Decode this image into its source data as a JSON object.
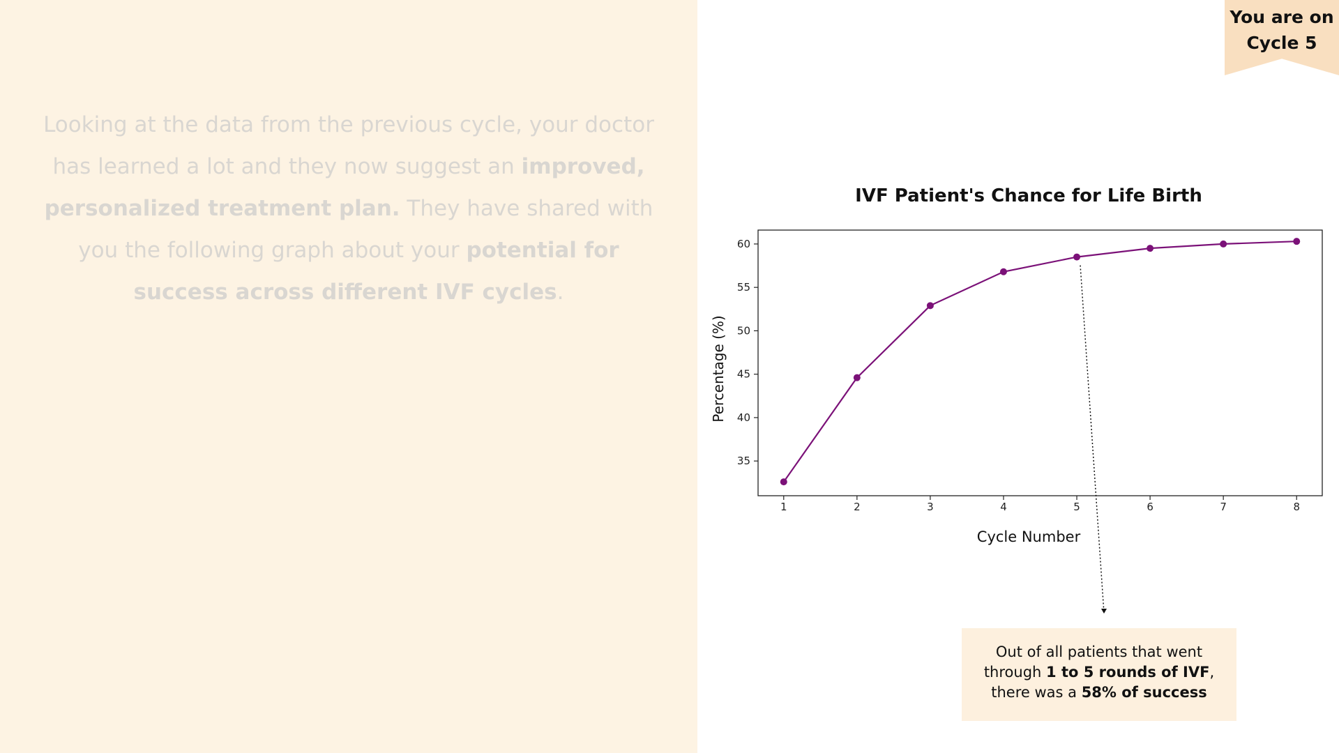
{
  "intro": {
    "t1": "Looking at the data from the previous cycle, your doctor has learned a lot and they now suggest an ",
    "b1": "improved, personalized treatment plan.",
    "t2": " They have shared with you the following graph about your ",
    "b2": "potential for success across different IVF cycles",
    "t3": "."
  },
  "badge": {
    "line1": "You are on",
    "line2": "Cycle 5"
  },
  "callout": {
    "t1": "Out of all patients that went through ",
    "b1": "1 to 5 rounds of IVF",
    "t2": ", there was a ",
    "b2": "58% of success"
  },
  "colors": {
    "line": "#7b1178",
    "left_panel": "#fdf3e3",
    "badge": "#f9dfc0",
    "callout": "#fdf0de"
  },
  "chart_data": {
    "type": "line",
    "title": "IVF Patient's Chance for Life Birth",
    "xlabel": "Cycle Number",
    "ylabel": "Percentage (%)",
    "x": [
      1,
      2,
      3,
      4,
      5,
      6,
      7,
      8
    ],
    "series": [
      {
        "values": [
          32.6,
          44.6,
          52.9,
          56.8,
          58.5,
          59.5,
          60.0,
          60.3
        ]
      }
    ],
    "xticks": [
      1,
      2,
      3,
      4,
      5,
      6,
      7,
      8
    ],
    "yticks": [
      35,
      40,
      45,
      50,
      55,
      60
    ],
    "xlim": [
      0.65,
      8.35
    ],
    "ylim": [
      31.0,
      61.6
    ],
    "grid": false,
    "annotation_x": 5
  }
}
